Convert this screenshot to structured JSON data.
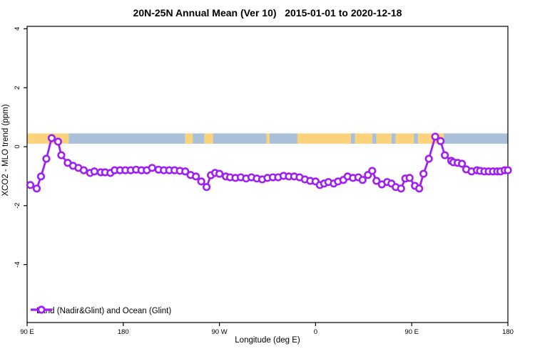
{
  "title": "20N-25N Annual Mean (Ver 10)   2015-01-01 to 2020-12-18",
  "legend": {
    "label": "Land (Nadir&Glint) and Ocean (Glint)"
  },
  "colors": {
    "series_purple": "#A020F0",
    "marker_fill": "#FFFFFF",
    "land_strip": "#FBD37C",
    "ocean_strip": "#AABFD8",
    "axis": "#000000",
    "background": "#FFFFFF"
  },
  "chart_data": {
    "type": "line",
    "title": "20N-25N Annual Mean (Ver 10)   2015-01-01 to 2020-12-18",
    "xlabel": "Longitude (deg E)",
    "ylabel": "XCO2 - MLO trend (ppm)",
    "legend_position": "bottom-left",
    "grid": false,
    "x_axis": {
      "range_deg_east": [
        90,
        540
      ],
      "ticks_deg": [
        90,
        180,
        270,
        360,
        450,
        540
      ],
      "tick_labels": [
        "90 E",
        "180",
        "90 W",
        "0",
        "90 E",
        "180"
      ]
    },
    "y_axis": {
      "range": [
        -6,
        4.1
      ],
      "ticks": [
        4,
        2,
        0,
        -2,
        -4
      ],
      "tick_labels": [
        "4",
        "2",
        "0",
        "-2",
        "-4"
      ]
    },
    "series": [
      {
        "name": "Land (Nadir&Glint) and Ocean (Glint)",
        "marker": "open-circle",
        "color": "#A020F0",
        "x_deg_east": [
          93,
          99,
          103,
          108,
          113,
          119,
          122,
          128,
          133,
          138,
          143,
          149,
          153,
          159,
          163,
          168,
          172,
          177,
          182,
          187,
          192,
          197,
          202,
          207,
          213,
          218,
          223,
          228,
          233,
          238,
          243,
          248,
          253,
          258,
          262,
          266,
          270,
          276,
          280,
          285,
          290,
          295,
          300,
          305,
          310,
          315,
          320,
          325,
          330,
          335,
          340,
          345,
          350,
          355,
          360,
          364,
          368,
          372,
          377,
          381,
          386,
          390,
          395,
          400,
          404,
          409,
          413,
          417,
          422,
          427,
          431,
          435,
          440,
          444,
          448,
          453,
          457,
          461,
          466,
          472,
          477,
          481,
          487,
          489,
          493,
          497,
          501,
          506,
          511,
          514,
          518,
          522,
          526,
          530,
          533,
          537,
          540
        ],
        "y_ppm": [
          -1.3,
          -1.42,
          -1.01,
          -0.41,
          0.29,
          0.17,
          -0.29,
          -0.55,
          -0.65,
          -0.72,
          -0.8,
          -0.89,
          -0.84,
          -0.87,
          -0.87,
          -0.89,
          -0.8,
          -0.8,
          -0.8,
          -0.8,
          -0.78,
          -0.8,
          -0.8,
          -0.72,
          -0.78,
          -0.8,
          -0.8,
          -0.8,
          -0.82,
          -0.84,
          -0.96,
          -1.01,
          -1.18,
          -1.37,
          -0.97,
          -0.89,
          -0.92,
          -1.01,
          -1.04,
          -1.06,
          -1.04,
          -1.08,
          -1.04,
          -1.08,
          -1.11,
          -1.06,
          -1.04,
          -1.04,
          -0.99,
          -1.01,
          -1.01,
          -1.04,
          -1.11,
          -1.16,
          -1.18,
          -1.3,
          -1.25,
          -1.2,
          -1.25,
          -1.18,
          -1.13,
          -1.01,
          -1.06,
          -1.04,
          -1.13,
          -0.96,
          -0.82,
          -1.16,
          -1.28,
          -1.2,
          -1.25,
          -1.37,
          -1.42,
          -1.08,
          -1.06,
          -1.33,
          -1.42,
          -0.92,
          -0.41,
          0.34,
          0.19,
          -0.29,
          -0.48,
          -0.53,
          -0.55,
          -0.58,
          -0.77,
          -0.84,
          -0.8,
          -0.82,
          -0.84,
          -0.84,
          -0.84,
          -0.84,
          -0.84,
          -0.8,
          -0.8
        ]
      }
    ],
    "map_strip": {
      "description_visible": false,
      "v_range_ppm": [
        0.1,
        0.45
      ],
      "segments": [
        {
          "from_deg": 90,
          "to_deg": 129,
          "type": "land"
        },
        {
          "from_deg": 129,
          "to_deg": 238,
          "type": "ocean"
        },
        {
          "from_deg": 238,
          "to_deg": 245,
          "type": "land"
        },
        {
          "from_deg": 245,
          "to_deg": 256,
          "type": "ocean"
        },
        {
          "from_deg": 256,
          "to_deg": 264,
          "type": "land"
        },
        {
          "from_deg": 264,
          "to_deg": 314,
          "type": "ocean"
        },
        {
          "from_deg": 314,
          "to_deg": 317,
          "type": "land"
        },
        {
          "from_deg": 317,
          "to_deg": 343,
          "type": "ocean"
        },
        {
          "from_deg": 343,
          "to_deg": 393,
          "type": "land"
        },
        {
          "from_deg": 393,
          "to_deg": 397,
          "type": "ocean"
        },
        {
          "from_deg": 397,
          "to_deg": 413,
          "type": "land"
        },
        {
          "from_deg": 413,
          "to_deg": 417,
          "type": "ocean"
        },
        {
          "from_deg": 417,
          "to_deg": 431,
          "type": "land"
        },
        {
          "from_deg": 431,
          "to_deg": 435,
          "type": "ocean"
        },
        {
          "from_deg": 435,
          "to_deg": 452,
          "type": "land"
        },
        {
          "from_deg": 452,
          "to_deg": 456,
          "type": "ocean"
        },
        {
          "from_deg": 456,
          "to_deg": 480,
          "type": "land"
        },
        {
          "from_deg": 480,
          "to_deg": 540,
          "type": "ocean"
        }
      ]
    }
  }
}
